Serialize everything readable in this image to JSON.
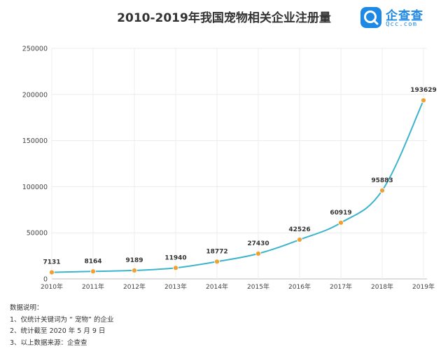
{
  "header": {
    "title": "2010-2019年我国宠物相关企业注册量",
    "logo_name": "企查查",
    "logo_url": "Qcc.com"
  },
  "chart_data": {
    "type": "line",
    "title": "2010-2019年我国宠物相关企业注册量",
    "categories": [
      "2010年",
      "2011年",
      "2012年",
      "2013年",
      "2014年",
      "2015年",
      "2016年",
      "2017年",
      "2018年",
      "2019年"
    ],
    "values": [
      7131,
      8164,
      9189,
      11940,
      18772,
      27430,
      42526,
      60919,
      95883,
      193629
    ],
    "ylim": [
      0,
      250000
    ],
    "yticks": [
      "0",
      "50000",
      "100000",
      "150000",
      "200000",
      "250000"
    ],
    "grid": true,
    "line_color": "#3cb5cc",
    "marker_color": "#f0a030"
  },
  "notes": {
    "heading": "数据说明：",
    "items": [
      "1、仅统计关键词为 “ 宠物” 的企业",
      "2、统计截至 2020 年 5 月 9 日",
      "3、以上数据来源：企查查"
    ]
  }
}
